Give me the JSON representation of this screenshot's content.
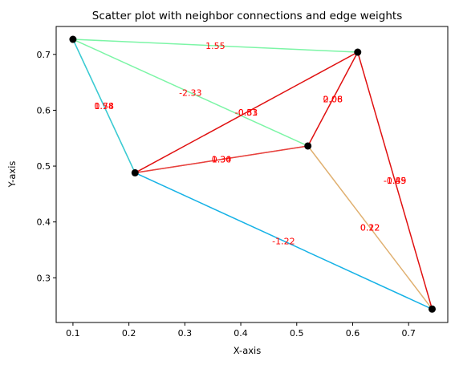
{
  "chart_data": {
    "type": "scatter",
    "title": "Scatter plot with neighbor connections and edge weights",
    "xlabel": "X-axis",
    "ylabel": "Y-axis",
    "xlim": [
      0.07,
      0.77
    ],
    "ylim": [
      0.22,
      0.75
    ],
    "xticks": [
      "0.1",
      "0.2",
      "0.3",
      "0.4",
      "0.5",
      "0.6",
      "0.7"
    ],
    "xtick_values": [
      0.1,
      0.2,
      0.3,
      0.4,
      0.5,
      0.6,
      0.7
    ],
    "yticks": [
      "0.3",
      "0.4",
      "0.5",
      "0.6",
      "0.7"
    ],
    "ytick_values": [
      0.3,
      0.4,
      0.5,
      0.6,
      0.7
    ],
    "grid": false,
    "point_color": "#000000",
    "points": [
      {
        "x": 0.1,
        "y": 0.727
      },
      {
        "x": 0.211,
        "y": 0.488
      },
      {
        "x": 0.52,
        "y": 0.536
      },
      {
        "x": 0.609,
        "y": 0.704
      },
      {
        "x": 0.742,
        "y": 0.244
      }
    ],
    "edges": [
      {
        "from": 0,
        "to": 3,
        "color": "#7cf5a6",
        "labels": [
          "1.55"
        ]
      },
      {
        "from": 0,
        "to": 2,
        "color": "#7cf5a6",
        "labels": [
          "-2.33"
        ]
      },
      {
        "from": 0,
        "to": 1,
        "color": "#7cf5a6",
        "labels": [
          "0.74",
          "1.58"
        ]
      },
      {
        "from": 0,
        "to": 1,
        "color": "#3cc8d8",
        "labels": []
      },
      {
        "from": 1,
        "to": 4,
        "color": "#16b2e6",
        "labels": [
          "-1.22"
        ]
      },
      {
        "from": 1,
        "to": 2,
        "color": "#e8a070",
        "labels": [
          "0.30",
          "1.34"
        ]
      },
      {
        "from": 1,
        "to": 2,
        "color": "#e84040",
        "labels": []
      },
      {
        "from": 2,
        "to": 4,
        "color": "#e0b070",
        "labels": [
          "0.12",
          "0.22"
        ]
      },
      {
        "from": 1,
        "to": 3,
        "color": "#e01010",
        "labels": [
          "-0.53",
          "-0.81"
        ]
      },
      {
        "from": 2,
        "to": 3,
        "color": "#e01010",
        "labels": [
          "2.06",
          "0.08"
        ]
      },
      {
        "from": 3,
        "to": 4,
        "color": "#e01010",
        "labels": [
          "-1.85",
          "-0.49"
        ]
      }
    ],
    "label_color": "#ff0000"
  }
}
